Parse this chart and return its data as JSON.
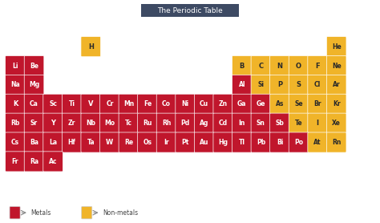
{
  "title": "The Periodic Table",
  "title_bg": "#3d4a63",
  "title_fg": "#ffffff",
  "metal_color": "#c0162c",
  "nonmetal_color": "#f0b429",
  "bg_color": "#ffffff",
  "legend_metal": "Metals",
  "legend_nonmetal": "Non-metals",
  "elements": [
    {
      "sym": "H",
      "row": 1,
      "col": 5,
      "type": "nonmetal"
    },
    {
      "sym": "He",
      "row": 1,
      "col": 18,
      "type": "nonmetal"
    },
    {
      "sym": "Li",
      "row": 2,
      "col": 1,
      "type": "metal"
    },
    {
      "sym": "Be",
      "row": 2,
      "col": 2,
      "type": "metal"
    },
    {
      "sym": "B",
      "row": 2,
      "col": 13,
      "type": "nonmetal"
    },
    {
      "sym": "C",
      "row": 2,
      "col": 14,
      "type": "nonmetal"
    },
    {
      "sym": "N",
      "row": 2,
      "col": 15,
      "type": "nonmetal"
    },
    {
      "sym": "O",
      "row": 2,
      "col": 16,
      "type": "nonmetal"
    },
    {
      "sym": "F",
      "row": 2,
      "col": 17,
      "type": "nonmetal"
    },
    {
      "sym": "Ne",
      "row": 2,
      "col": 18,
      "type": "nonmetal"
    },
    {
      "sym": "Na",
      "row": 3,
      "col": 1,
      "type": "metal"
    },
    {
      "sym": "Mg",
      "row": 3,
      "col": 2,
      "type": "metal"
    },
    {
      "sym": "Al",
      "row": 3,
      "col": 13,
      "type": "metal"
    },
    {
      "sym": "Si",
      "row": 3,
      "col": 14,
      "type": "nonmetal"
    },
    {
      "sym": "P",
      "row": 3,
      "col": 15,
      "type": "nonmetal"
    },
    {
      "sym": "S",
      "row": 3,
      "col": 16,
      "type": "nonmetal"
    },
    {
      "sym": "Cl",
      "row": 3,
      "col": 17,
      "type": "nonmetal"
    },
    {
      "sym": "Ar",
      "row": 3,
      "col": 18,
      "type": "nonmetal"
    },
    {
      "sym": "K",
      "row": 4,
      "col": 1,
      "type": "metal"
    },
    {
      "sym": "Ca",
      "row": 4,
      "col": 2,
      "type": "metal"
    },
    {
      "sym": "Sc",
      "row": 4,
      "col": 3,
      "type": "metal"
    },
    {
      "sym": "Ti",
      "row": 4,
      "col": 4,
      "type": "metal"
    },
    {
      "sym": "V",
      "row": 4,
      "col": 5,
      "type": "metal"
    },
    {
      "sym": "Cr",
      "row": 4,
      "col": 6,
      "type": "metal"
    },
    {
      "sym": "Mn",
      "row": 4,
      "col": 7,
      "type": "metal"
    },
    {
      "sym": "Fe",
      "row": 4,
      "col": 8,
      "type": "metal"
    },
    {
      "sym": "Co",
      "row": 4,
      "col": 9,
      "type": "metal"
    },
    {
      "sym": "Ni",
      "row": 4,
      "col": 10,
      "type": "metal"
    },
    {
      "sym": "Cu",
      "row": 4,
      "col": 11,
      "type": "metal"
    },
    {
      "sym": "Zn",
      "row": 4,
      "col": 12,
      "type": "metal"
    },
    {
      "sym": "Ga",
      "row": 4,
      "col": 13,
      "type": "metal"
    },
    {
      "sym": "Ge",
      "row": 4,
      "col": 14,
      "type": "metal"
    },
    {
      "sym": "As",
      "row": 4,
      "col": 15,
      "type": "nonmetal"
    },
    {
      "sym": "Se",
      "row": 4,
      "col": 16,
      "type": "nonmetal"
    },
    {
      "sym": "Br",
      "row": 4,
      "col": 17,
      "type": "nonmetal"
    },
    {
      "sym": "Kr",
      "row": 4,
      "col": 18,
      "type": "nonmetal"
    },
    {
      "sym": "Rb",
      "row": 5,
      "col": 1,
      "type": "metal"
    },
    {
      "sym": "Sr",
      "row": 5,
      "col": 2,
      "type": "metal"
    },
    {
      "sym": "Y",
      "row": 5,
      "col": 3,
      "type": "metal"
    },
    {
      "sym": "Zr",
      "row": 5,
      "col": 4,
      "type": "metal"
    },
    {
      "sym": "Nb",
      "row": 5,
      "col": 5,
      "type": "metal"
    },
    {
      "sym": "Mo",
      "row": 5,
      "col": 6,
      "type": "metal"
    },
    {
      "sym": "Tc",
      "row": 5,
      "col": 7,
      "type": "metal"
    },
    {
      "sym": "Ru",
      "row": 5,
      "col": 8,
      "type": "metal"
    },
    {
      "sym": "Rh",
      "row": 5,
      "col": 9,
      "type": "metal"
    },
    {
      "sym": "Pd",
      "row": 5,
      "col": 10,
      "type": "metal"
    },
    {
      "sym": "Ag",
      "row": 5,
      "col": 11,
      "type": "metal"
    },
    {
      "sym": "Cd",
      "row": 5,
      "col": 12,
      "type": "metal"
    },
    {
      "sym": "In",
      "row": 5,
      "col": 13,
      "type": "metal"
    },
    {
      "sym": "Sn",
      "row": 5,
      "col": 14,
      "type": "metal"
    },
    {
      "sym": "Sb",
      "row": 5,
      "col": 15,
      "type": "metal"
    },
    {
      "sym": "Te",
      "row": 5,
      "col": 16,
      "type": "nonmetal"
    },
    {
      "sym": "I",
      "row": 5,
      "col": 17,
      "type": "nonmetal"
    },
    {
      "sym": "Xe",
      "row": 5,
      "col": 18,
      "type": "nonmetal"
    },
    {
      "sym": "Cs",
      "row": 6,
      "col": 1,
      "type": "metal"
    },
    {
      "sym": "Ba",
      "row": 6,
      "col": 2,
      "type": "metal"
    },
    {
      "sym": "La",
      "row": 6,
      "col": 3,
      "type": "metal"
    },
    {
      "sym": "Hf",
      "row": 6,
      "col": 4,
      "type": "metal"
    },
    {
      "sym": "Ta",
      "row": 6,
      "col": 5,
      "type": "metal"
    },
    {
      "sym": "W",
      "row": 6,
      "col": 6,
      "type": "metal"
    },
    {
      "sym": "Re",
      "row": 6,
      "col": 7,
      "type": "metal"
    },
    {
      "sym": "Os",
      "row": 6,
      "col": 8,
      "type": "metal"
    },
    {
      "sym": "Ir",
      "row": 6,
      "col": 9,
      "type": "metal"
    },
    {
      "sym": "Pt",
      "row": 6,
      "col": 10,
      "type": "metal"
    },
    {
      "sym": "Au",
      "row": 6,
      "col": 11,
      "type": "metal"
    },
    {
      "sym": "Hg",
      "row": 6,
      "col": 12,
      "type": "metal"
    },
    {
      "sym": "Tl",
      "row": 6,
      "col": 13,
      "type": "metal"
    },
    {
      "sym": "Pb",
      "row": 6,
      "col": 14,
      "type": "metal"
    },
    {
      "sym": "Bi",
      "row": 6,
      "col": 15,
      "type": "metal"
    },
    {
      "sym": "Po",
      "row": 6,
      "col": 16,
      "type": "metal"
    },
    {
      "sym": "At",
      "row": 6,
      "col": 17,
      "type": "nonmetal"
    },
    {
      "sym": "Rn",
      "row": 6,
      "col": 18,
      "type": "nonmetal"
    },
    {
      "sym": "Fr",
      "row": 7,
      "col": 1,
      "type": "metal"
    },
    {
      "sym": "Ra",
      "row": 7,
      "col": 2,
      "type": "metal"
    },
    {
      "sym": "Ac",
      "row": 7,
      "col": 3,
      "type": "metal"
    }
  ]
}
